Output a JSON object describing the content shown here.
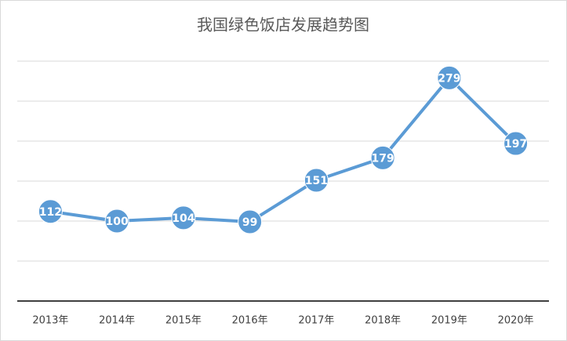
{
  "chart_data": {
    "type": "line",
    "title": "我国绿色饭店发展趋势图",
    "categories": [
      "2013年",
      "2014年",
      "2015年",
      "2016年",
      "2017年",
      "2018年",
      "2019年",
      "2020年"
    ],
    "values": [
      112,
      100,
      104,
      99,
      151,
      179,
      279,
      197
    ],
    "color": "#5b9bd5",
    "ylim": [
      0,
      300
    ],
    "yticks": [
      0,
      50,
      100,
      150,
      200,
      250,
      300
    ],
    "grid": true
  }
}
